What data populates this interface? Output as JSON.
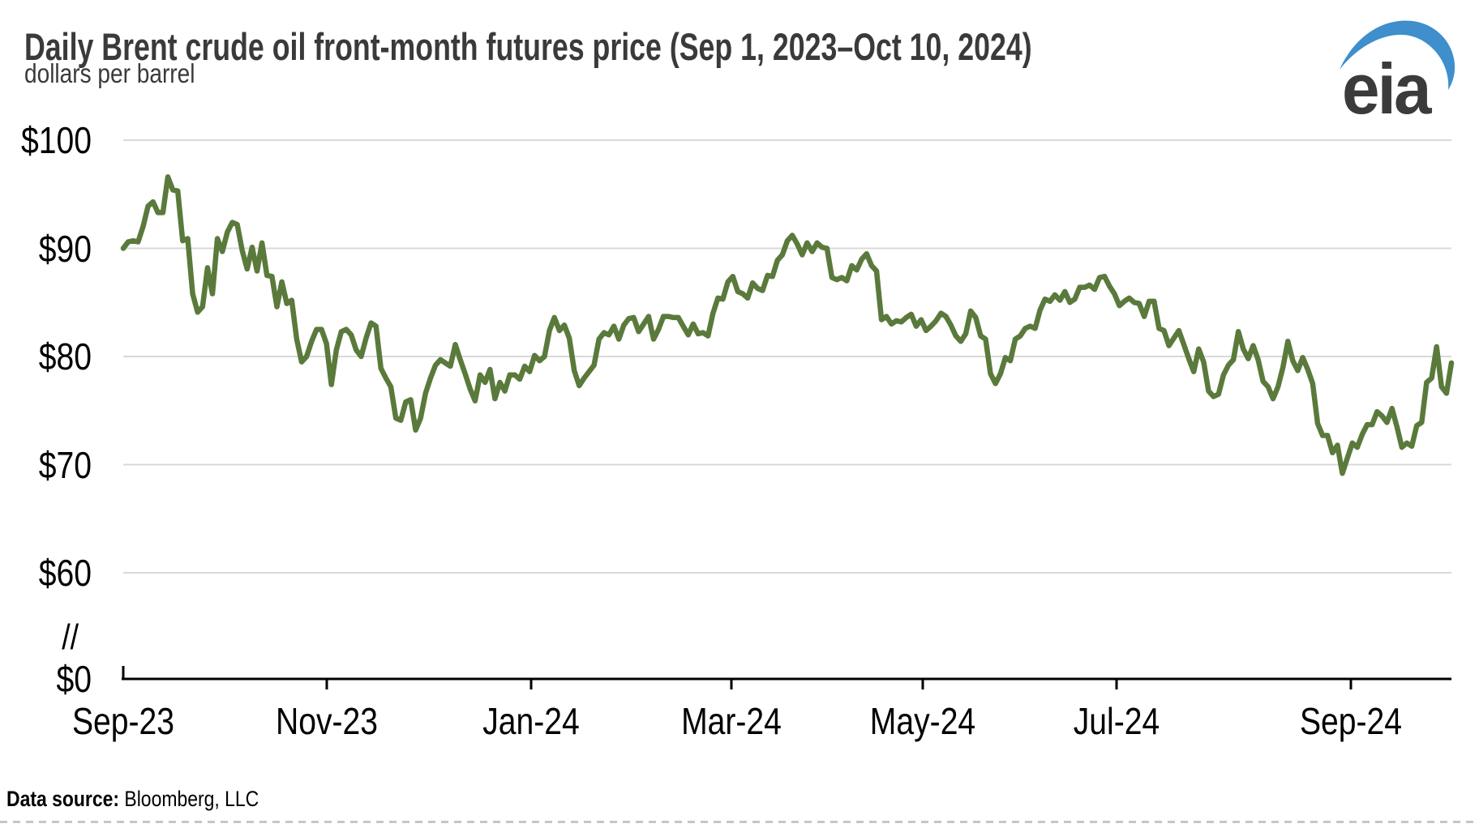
{
  "header": {
    "title": "Daily Brent crude oil front-month futures price (Sep 1, 2023–Oct 10, 2024)",
    "subtitle": "dollars per barrel"
  },
  "logo": {
    "text": "eia",
    "swoosh_color": "#3E8FCB",
    "text_color": "#3b3b3b"
  },
  "footer": {
    "source_label": "Data source:",
    "source_value": " Bloomberg, LLC"
  },
  "chart_data": {
    "type": "line",
    "title": "Daily Brent crude oil front-month futures price (Sep 1, 2023–Oct 10, 2024)",
    "ylabel": "dollars per barrel",
    "x_domain": [
      "2023-09-01",
      "2024-10-10"
    ],
    "x_tick_labels": [
      "Sep-23",
      "Nov-23",
      "Jan-24",
      "Mar-24",
      "May-24",
      "Jul-24",
      "Sep-24"
    ],
    "y_tick_labels": [
      "$100",
      "$90",
      "$80",
      "$70",
      "$60"
    ],
    "y_tick_values": [
      100,
      90,
      80,
      70,
      60
    ],
    "y_break_label": "//",
    "y_zero_label": "$0",
    "ylim": [
      60,
      100
    ],
    "y_axis_break_to_zero": true,
    "grid": "horizontal",
    "line_color": "#5a7a3c",
    "gridline_color": "#d9d9d9",
    "axis_color": "#000000",
    "series": [
      {
        "name": "Brent crude oil front-month futures price",
        "spacing_note": "daily closes, evenly spaced from Sep 1, 2023 to Oct 10, 2024",
        "values": [
          90.0,
          90.6,
          90.7,
          90.6,
          92.0,
          93.9,
          94.3,
          93.3,
          93.3,
          96.6,
          95.4,
          95.3,
          90.7,
          90.9,
          85.8,
          84.1,
          84.6,
          88.2,
          85.8,
          90.9,
          89.7,
          91.5,
          92.4,
          92.2,
          89.8,
          88.1,
          90.1,
          87.9,
          90.5,
          87.5,
          87.4,
          84.6,
          86.9,
          84.9,
          85.2,
          81.6,
          79.5,
          80.0,
          81.4,
          82.5,
          82.5,
          81.2,
          77.4,
          80.6,
          82.3,
          82.5,
          82.0,
          80.6,
          80.0,
          81.7,
          83.1,
          82.8,
          78.9,
          78.0,
          77.2,
          74.3,
          74.1,
          75.8,
          76.0,
          73.2,
          74.3,
          76.6,
          78.0,
          79.2,
          79.7,
          79.4,
          79.1,
          81.1,
          79.7,
          78.4,
          77.0,
          75.9,
          78.3,
          77.6,
          78.8,
          76.1,
          77.6,
          76.8,
          78.3,
          78.3,
          77.9,
          79.1,
          78.6,
          80.1,
          79.6,
          80.0,
          82.4,
          83.6,
          82.4,
          82.9,
          81.7,
          78.7,
          77.3,
          78.0,
          78.6,
          79.2,
          81.6,
          82.2,
          82.0,
          82.8,
          81.6,
          82.9,
          83.5,
          83.6,
          82.3,
          83.0,
          83.7,
          81.6,
          82.5,
          83.7,
          83.7,
          83.6,
          83.6,
          82.8,
          82.0,
          83.0,
          82.1,
          82.2,
          81.9,
          84.0,
          85.4,
          85.3,
          86.9,
          87.4,
          86.0,
          85.8,
          85.4,
          86.8,
          86.3,
          86.1,
          87.5,
          87.4,
          88.9,
          89.4,
          90.7,
          91.2,
          90.4,
          89.4,
          90.5,
          89.7,
          90.5,
          90.1,
          90.0,
          87.3,
          87.1,
          87.3,
          87.0,
          88.4,
          88.0,
          89.0,
          89.5,
          88.4,
          87.9,
          83.4,
          83.7,
          83.0,
          83.3,
          83.2,
          83.6,
          83.9,
          82.8,
          83.4,
          82.4,
          82.8,
          83.3,
          84.0,
          83.7,
          82.9,
          81.9,
          81.4,
          82.1,
          84.2,
          83.6,
          81.9,
          81.6,
          78.4,
          77.5,
          78.4,
          79.9,
          79.6,
          81.6,
          81.9,
          82.6,
          82.8,
          82.6,
          84.3,
          85.3,
          85.1,
          85.7,
          85.2,
          86.0,
          85.0,
          85.3,
          86.4,
          86.4,
          86.6,
          86.2,
          87.3,
          87.4,
          86.5,
          85.8,
          84.7,
          85.1,
          85.4,
          85.0,
          84.9,
          83.7,
          85.1,
          85.1,
          82.6,
          82.4,
          81.0,
          81.7,
          82.4,
          81.1,
          79.8,
          78.6,
          80.7,
          79.5,
          76.8,
          76.3,
          76.5,
          78.3,
          79.2,
          79.7,
          82.3,
          80.7,
          79.8,
          81.0,
          79.7,
          77.7,
          77.2,
          76.1,
          77.2,
          79.0,
          81.4,
          79.6,
          78.7,
          79.9,
          78.8,
          77.5,
          73.8,
          72.7,
          72.7,
          71.1,
          71.8,
          69.2,
          70.6,
          72.0,
          71.6,
          72.8,
          73.7,
          73.7,
          74.9,
          74.5,
          73.9,
          75.2,
          73.5,
          71.6,
          72.0,
          71.7,
          73.6,
          73.9,
          77.6,
          78.0,
          80.9,
          77.2,
          76.6,
          79.4
        ]
      }
    ]
  }
}
